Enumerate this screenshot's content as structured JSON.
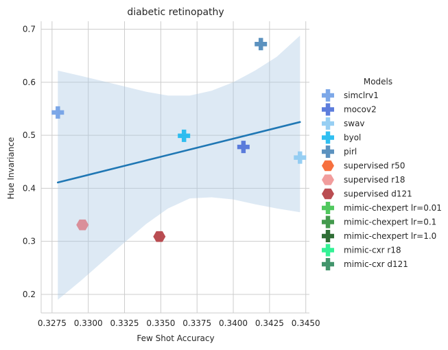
{
  "chart_data": {
    "type": "scatter",
    "title": "diabetic retinopathy",
    "xlabel": "Few Shot Accuracy",
    "ylabel": "Hue Invariance",
    "xlim": [
      0.32675,
      0.34525
    ],
    "ylim": [
      0.165,
      0.715
    ],
    "xticks": [
      "0.3275",
      "0.3300",
      "0.3325",
      "0.3350",
      "0.3375",
      "0.3400",
      "0.3425",
      "0.3450"
    ],
    "xtick_values": [
      0.3275,
      0.33,
      0.3325,
      0.335,
      0.3375,
      0.34,
      0.3425,
      0.345
    ],
    "yticks": [
      "0.2",
      "0.3",
      "0.4",
      "0.5",
      "0.6",
      "0.7"
    ],
    "ytick_values": [
      0.2,
      0.3,
      0.4,
      0.5,
      0.6,
      0.7
    ],
    "grid": true,
    "legend": {
      "title": "Models",
      "placement": "right",
      "entries": [
        {
          "name": "simclrv1",
          "color": "#6f9fe6",
          "marker": "plus"
        },
        {
          "name": "mocov2",
          "color": "#4b6fd8",
          "marker": "plus"
        },
        {
          "name": "swav",
          "color": "#8ccaf2",
          "marker": "plus"
        },
        {
          "name": "byol",
          "color": "#1ab8f0",
          "marker": "plus"
        },
        {
          "name": "pirl",
          "color": "#4a86b8",
          "marker": "plus"
        },
        {
          "name": "supervised r50",
          "color": "#f5602a",
          "marker": "hexagon"
        },
        {
          "name": "supervised r18",
          "color": "#f09292",
          "marker": "hexagon"
        },
        {
          "name": "supervised d121",
          "color": "#b23a3f",
          "marker": "hexagon"
        },
        {
          "name": "mimic-chexpert lr=0.01",
          "color": "#3dc24d",
          "marker": "plus"
        },
        {
          "name": "mimic-chexpert lr=0.1",
          "color": "#2f8f3a",
          "marker": "plus"
        },
        {
          "name": "mimic-chexpert lr=1.0",
          "color": "#1a5e20",
          "marker": "plus"
        },
        {
          "name": "mimic-cxr r18",
          "color": "#1ef08a",
          "marker": "plus"
        },
        {
          "name": "mimic-cxr d121",
          "color": "#2e8a5c",
          "marker": "plus"
        }
      ]
    },
    "points": [
      {
        "model": "simclrv1",
        "x": 0.3279,
        "y": 0.543,
        "color": "#6f9fe6",
        "marker": "plus"
      },
      {
        "model": "mocov2",
        "x": 0.3407,
        "y": 0.478,
        "color": "#4b6fd8",
        "marker": "plus"
      },
      {
        "model": "swav",
        "x": 0.3446,
        "y": 0.458,
        "color": "#8ccaf2",
        "marker": "plus"
      },
      {
        "model": "byol",
        "x": 0.3366,
        "y": 0.499,
        "color": "#1ab8f0",
        "marker": "plus"
      },
      {
        "model": "pirl",
        "x": 0.3419,
        "y": 0.672,
        "color": "#4a86b8",
        "marker": "plus"
      },
      {
        "model": "supervised r18",
        "x": 0.3296,
        "y": 0.331,
        "color": "#d98590",
        "marker": "hexagon"
      },
      {
        "model": "supervised d121",
        "x": 0.3349,
        "y": 0.309,
        "color": "#b23a3f",
        "marker": "hexagon"
      }
    ],
    "regression": {
      "color": "#1f77b4",
      "line": [
        [
          0.3279,
          0.411
        ],
        [
          0.3446,
          0.525
        ]
      ],
      "ci_color": "#a9c8e4",
      "ci_upper": [
        [
          0.3279,
          0.622
        ],
        [
          0.3295,
          0.612
        ],
        [
          0.331,
          0.602
        ],
        [
          0.3325,
          0.592
        ],
        [
          0.334,
          0.582
        ],
        [
          0.3355,
          0.575
        ],
        [
          0.337,
          0.575
        ],
        [
          0.3385,
          0.584
        ],
        [
          0.34,
          0.6
        ],
        [
          0.3415,
          0.622
        ],
        [
          0.343,
          0.648
        ],
        [
          0.3446,
          0.688
        ]
      ],
      "ci_lower": [
        [
          0.3279,
          0.19
        ],
        [
          0.3295,
          0.226
        ],
        [
          0.331,
          0.262
        ],
        [
          0.3325,
          0.298
        ],
        [
          0.334,
          0.333
        ],
        [
          0.3355,
          0.362
        ],
        [
          0.337,
          0.381
        ],
        [
          0.3385,
          0.383
        ],
        [
          0.34,
          0.379
        ],
        [
          0.3415,
          0.37
        ],
        [
          0.343,
          0.362
        ],
        [
          0.3446,
          0.355
        ]
      ]
    }
  }
}
